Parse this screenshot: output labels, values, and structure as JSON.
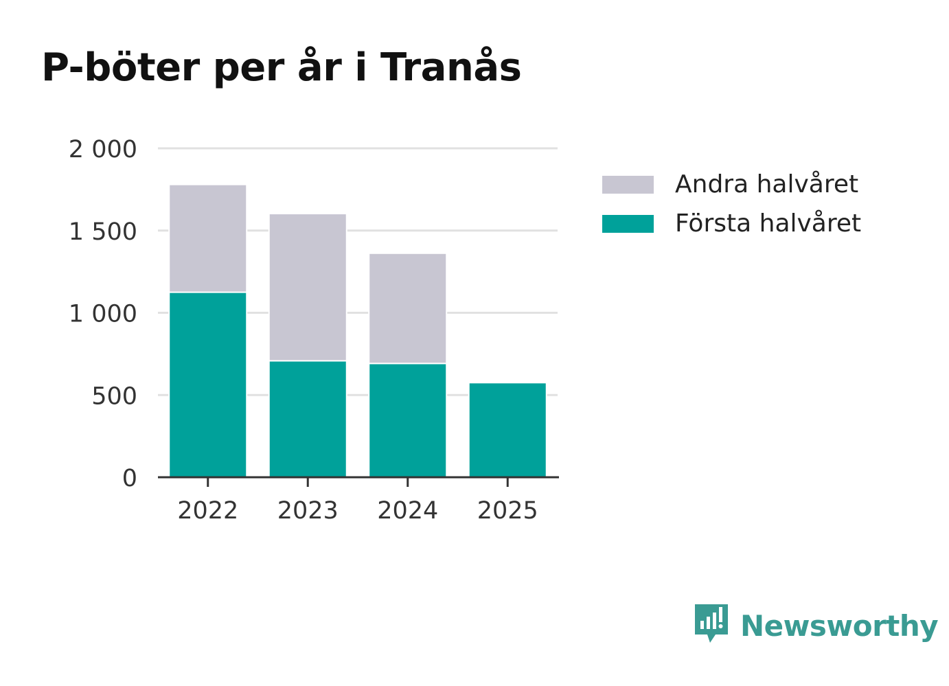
{
  "title": "P-böter per år i Tranås",
  "chart_data": {
    "type": "bar",
    "stacked": true,
    "categories": [
      "2022",
      "2023",
      "2024",
      "2025"
    ],
    "series": [
      {
        "name": "Första halvåret",
        "color": "#00a19a",
        "values": [
          1125,
          708,
          692,
          575
        ]
      },
      {
        "name": "Andra halvåret",
        "color": "#c8c6d2",
        "values": [
          655,
          895,
          670,
          0
        ]
      }
    ],
    "ylim": [
      0,
      2000
    ],
    "yticks": [
      0,
      500,
      1000,
      1500,
      2000
    ],
    "ytick_labels": [
      "0",
      "500",
      "1 000",
      "1 500",
      "2 000"
    ],
    "xlabel": "",
    "ylabel": "",
    "grid": true,
    "legend": {
      "position": "right",
      "order": [
        "Andra halvåret",
        "Första halvåret"
      ]
    }
  },
  "legend": {
    "items": [
      {
        "label": "Andra halvåret",
        "color": "#c8c6d2"
      },
      {
        "label": "Första halvåret",
        "color": "#00a19a"
      }
    ]
  },
  "brand": {
    "name": "Newsworthy",
    "color": "#3a9b93",
    "icon": "newsworthy-logo-icon"
  }
}
